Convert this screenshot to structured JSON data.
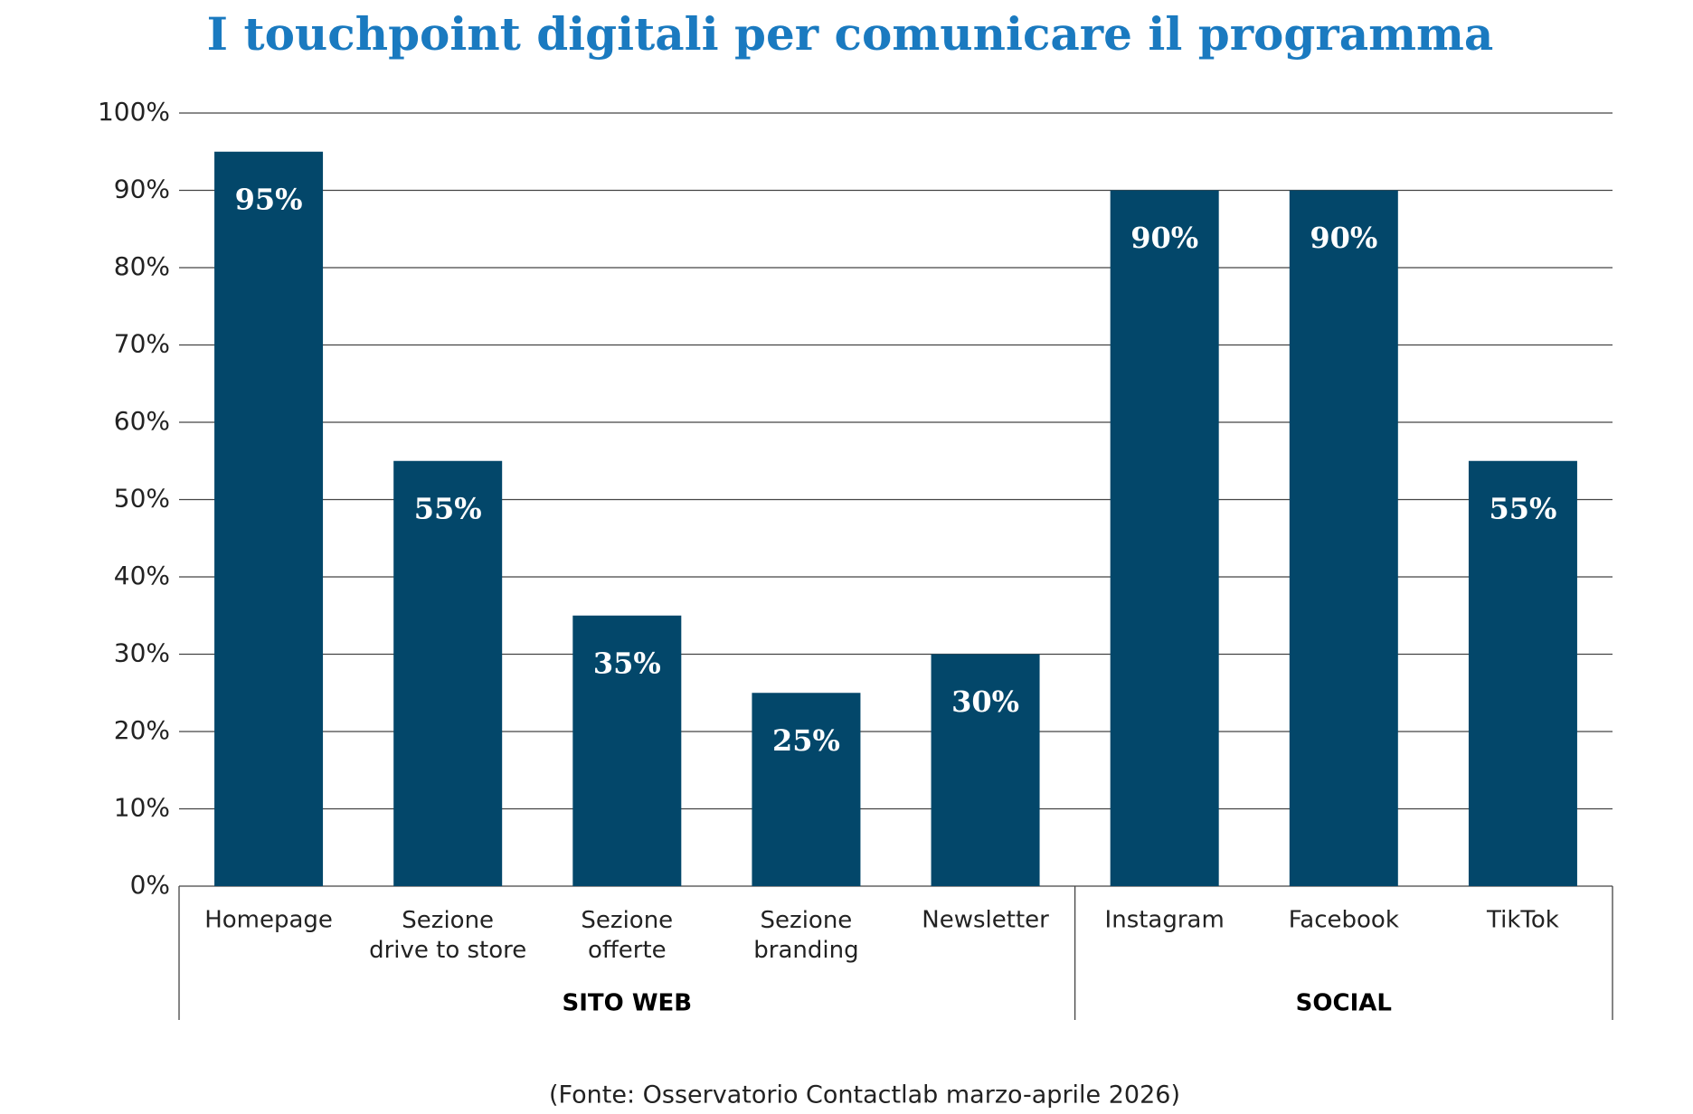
{
  "chart_data": {
    "type": "bar",
    "title": "I touchpoint digitali per comunicare il programma",
    "source": "(Fonte: Osservatorio Contactlab marzo-aprile 2026)",
    "categories": [
      "Homepage",
      "Sezione\ndrive to store",
      "Sezione\nofferte",
      "Sezione\nbranding",
      "Newsletter",
      "Instagram",
      "Facebook",
      "TikTok"
    ],
    "groups": [
      {
        "name": "SITO WEB",
        "size": 5
      },
      {
        "name": "SOCIAL",
        "size": 3
      }
    ],
    "values": [
      95,
      55,
      35,
      25,
      30,
      90,
      90,
      55
    ],
    "value_labels": [
      "95%",
      "55%",
      "35%",
      "25%",
      "30%",
      "90%",
      "90%",
      "55%"
    ],
    "color": "#03476a",
    "ylim": [
      0,
      100
    ],
    "yticks": [
      {
        "value": 0,
        "label": "0%"
      },
      {
        "value": 10,
        "label": "10%"
      },
      {
        "value": 20,
        "label": "20%"
      },
      {
        "value": 30,
        "label": "30%"
      },
      {
        "value": 40,
        "label": "40%"
      },
      {
        "value": 50,
        "label": "50%"
      },
      {
        "value": 60,
        "label": "60%"
      },
      {
        "value": 70,
        "label": "70%"
      },
      {
        "value": 80,
        "label": "80%"
      },
      {
        "value": 90,
        "label": "90%"
      },
      {
        "value": 100,
        "label": "100%"
      }
    ],
    "grid": true
  }
}
